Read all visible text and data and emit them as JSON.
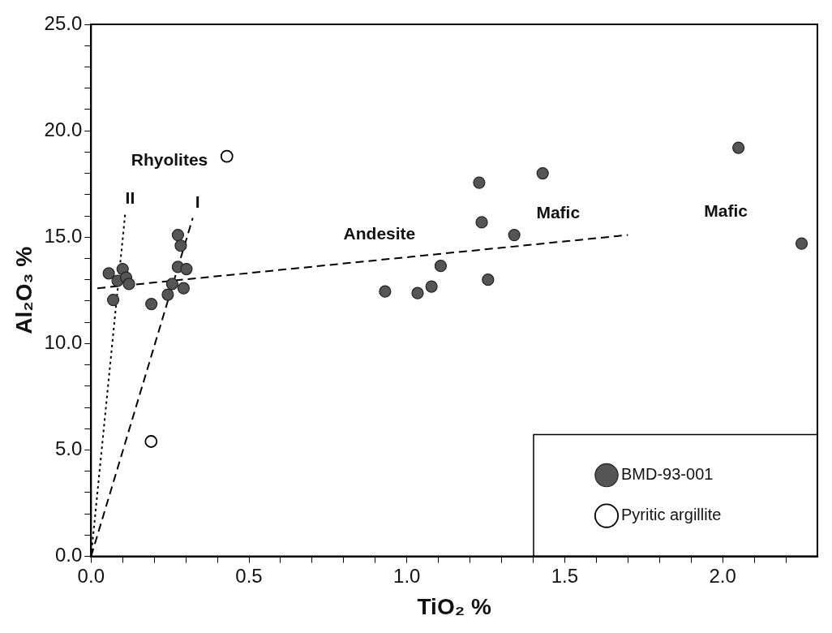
{
  "chart_data": {
    "type": "scatter",
    "xlabel": "TiO₂ %",
    "ylabel": "Al₂O₃ %",
    "xlim": [
      0,
      2.3
    ],
    "ylim": [
      0,
      25
    ],
    "xticks": [
      {
        "value": 0,
        "label": "0.0"
      },
      {
        "value": 0.1,
        "label": null
      },
      {
        "value": 0.2,
        "label": null
      },
      {
        "value": 0.3,
        "label": null
      },
      {
        "value": 0.4,
        "label": null
      },
      {
        "value": 0.5,
        "label": "0.5"
      },
      {
        "value": 0.6,
        "label": null
      },
      {
        "value": 0.7,
        "label": null
      },
      {
        "value": 0.8,
        "label": null
      },
      {
        "value": 0.9,
        "label": null
      },
      {
        "value": 1,
        "label": "1.0"
      },
      {
        "value": 1.1,
        "label": null
      },
      {
        "value": 1.2,
        "label": null
      },
      {
        "value": 1.3,
        "label": null
      },
      {
        "value": 1.4,
        "label": null
      },
      {
        "value": 1.5,
        "label": "1.5"
      },
      {
        "value": 1.6,
        "label": null
      },
      {
        "value": 1.7,
        "label": null
      },
      {
        "value": 1.8,
        "label": null
      },
      {
        "value": 1.9,
        "label": null
      },
      {
        "value": 2,
        "label": "2.0"
      },
      {
        "value": 2.1,
        "label": null
      },
      {
        "value": 2.2,
        "label": null
      }
    ],
    "yticks": [
      {
        "value": 0,
        "label": "0.0"
      },
      {
        "value": 1,
        "label": null
      },
      {
        "value": 2,
        "label": null
      },
      {
        "value": 3,
        "label": null
      },
      {
        "value": 4,
        "label": null
      },
      {
        "value": 5,
        "label": "5.0"
      },
      {
        "value": 6,
        "label": null
      },
      {
        "value": 7,
        "label": null
      },
      {
        "value": 8,
        "label": null
      },
      {
        "value": 9,
        "label": null
      },
      {
        "value": 10,
        "label": "10.0"
      },
      {
        "value": 11,
        "label": null
      },
      {
        "value": 12,
        "label": null
      },
      {
        "value": 13,
        "label": null
      },
      {
        "value": 14,
        "label": null
      },
      {
        "value": 15,
        "label": "15.0"
      },
      {
        "value": 16,
        "label": null
      },
      {
        "value": 17,
        "label": null
      },
      {
        "value": 18,
        "label": null
      },
      {
        "value": 19,
        "label": null
      },
      {
        "value": 20,
        "label": "20.0"
      },
      {
        "value": 21,
        "label": null
      },
      {
        "value": 22,
        "label": null
      },
      {
        "value": 23,
        "label": null
      },
      {
        "value": 24,
        "label": null
      },
      {
        "value": 25,
        "label": "25.0"
      }
    ],
    "grid": false,
    "legend": "bottom right",
    "marker": "circle",
    "series": [
      {
        "name": "BMD-93-001",
        "color": "#555555",
        "x": [
          0.056,
          0.1,
          0.084,
          0.111,
          0.07,
          0.12,
          0.191,
          0.275,
          0.284,
          0.275,
          0.302,
          0.257,
          0.293,
          0.243,
          0.931,
          1.034,
          1.078,
          1.107,
          1.257,
          1.229,
          1.237,
          1.34,
          1.43,
          2.05,
          2.25
        ],
        "values": [
          13.3,
          13.5,
          12.95,
          13.1,
          12.05,
          12.8,
          11.86,
          15.1,
          14.6,
          13.6,
          13.5,
          12.8,
          12.6,
          12.3,
          12.45,
          12.37,
          12.68,
          13.65,
          13.0,
          17.56,
          15.7,
          15.1,
          18.0,
          19.2,
          14.7
        ]
      },
      {
        "name": "Pyritic argillite",
        "color": "#000000",
        "x": [
          0.43,
          0.19
        ],
        "values": [
          18.8,
          5.4
        ]
      },
      {
        "color": "#000000",
        "type": "line",
        "line_style": "dotted",
        "marker": "none",
        "x": [
          0,
          0.108
        ],
        "values": [
          0,
          16.1
        ]
      },
      {
        "color": "#000000",
        "type": "line",
        "line_style": "dashed",
        "marker": "none",
        "x": [
          0,
          0.322
        ],
        "values": [
          0,
          15.9
        ]
      },
      {
        "color": "#000000",
        "type": "line",
        "line_style": "dashed",
        "marker": "none",
        "x": [
          0.02,
          1.7
        ],
        "values": [
          12.6,
          15.1
        ]
      }
    ],
    "annotations": [
      "Rhyolites",
      {
        "text": "II",
        "x": 0.108,
        "y": 16.1
      },
      {
        "text": "I",
        "x": 0.322,
        "y": 15.9
      },
      "Andesite",
      "Mafic",
      "Mafic"
    ]
  }
}
